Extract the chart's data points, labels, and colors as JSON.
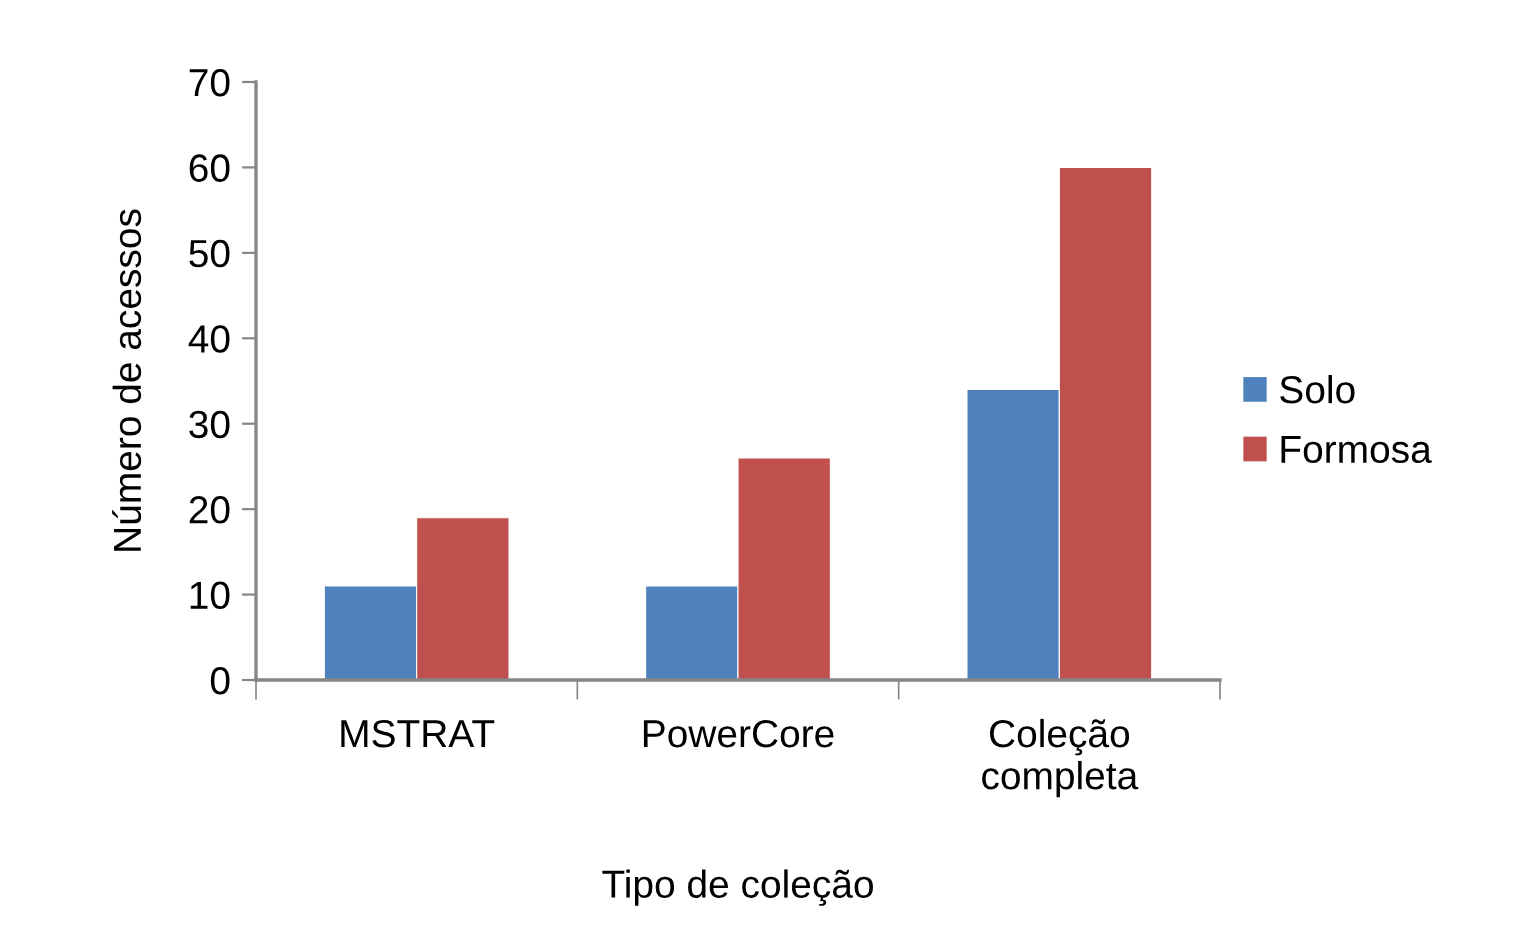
{
  "chart_data": {
    "type": "bar",
    "xlabel": "Tipo de coleção",
    "ylabel": "Número de acessos",
    "categories": [
      "MSTRAT",
      "PowerCore",
      "Coleção completa"
    ],
    "series": [
      {
        "name": "Solo",
        "color": "#4f81bd",
        "values": [
          11,
          11,
          34
        ]
      },
      {
        "name": "Formosa",
        "color": "#c0504d",
        "values": [
          19,
          26,
          60
        ]
      }
    ],
    "ylim": [
      0,
      70
    ],
    "yticks": [
      0,
      10,
      20,
      30,
      40,
      50,
      60,
      70
    ],
    "grid": false,
    "legend": "right"
  }
}
